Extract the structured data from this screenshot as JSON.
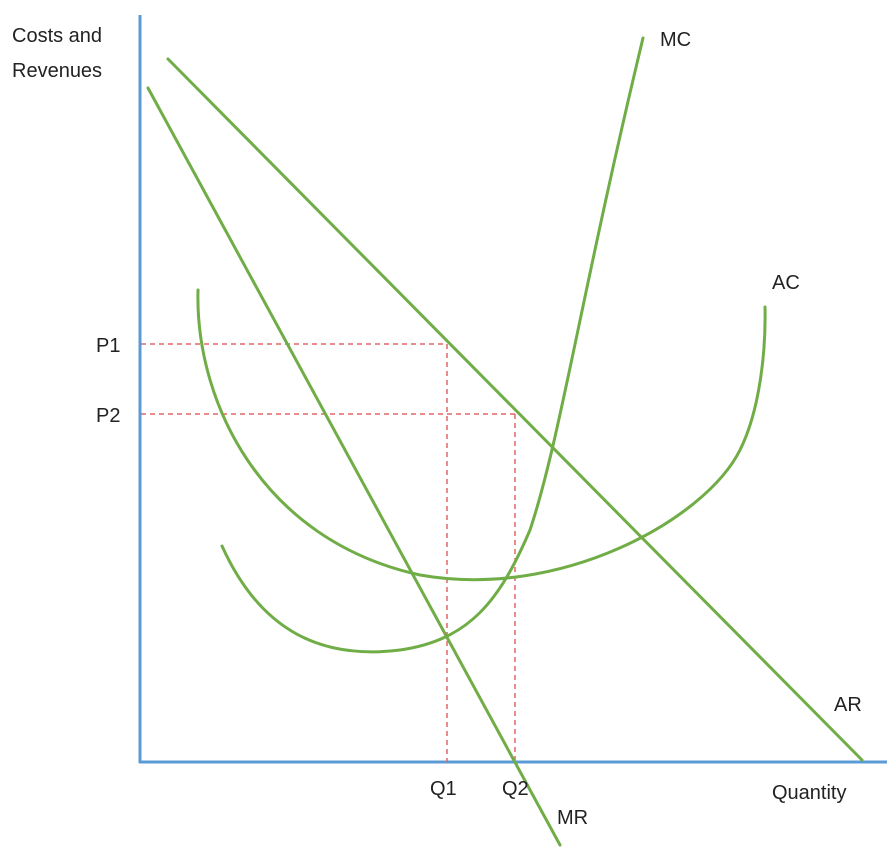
{
  "diagram": {
    "y_axis_label_line1": "Costs and",
    "y_axis_label_line2": "Revenues",
    "x_axis_label": "Quantity",
    "curves": {
      "mc": "MC",
      "ac": "AC",
      "ar": "AR",
      "mr": "MR"
    },
    "prices": {
      "p1": "P1",
      "p2": "P2"
    },
    "quantities": {
      "q1": "Q1",
      "q2": "Q2"
    },
    "colors": {
      "axis": "#5b9bd5",
      "curve": "#70ad47",
      "guide": "#e06666"
    }
  }
}
